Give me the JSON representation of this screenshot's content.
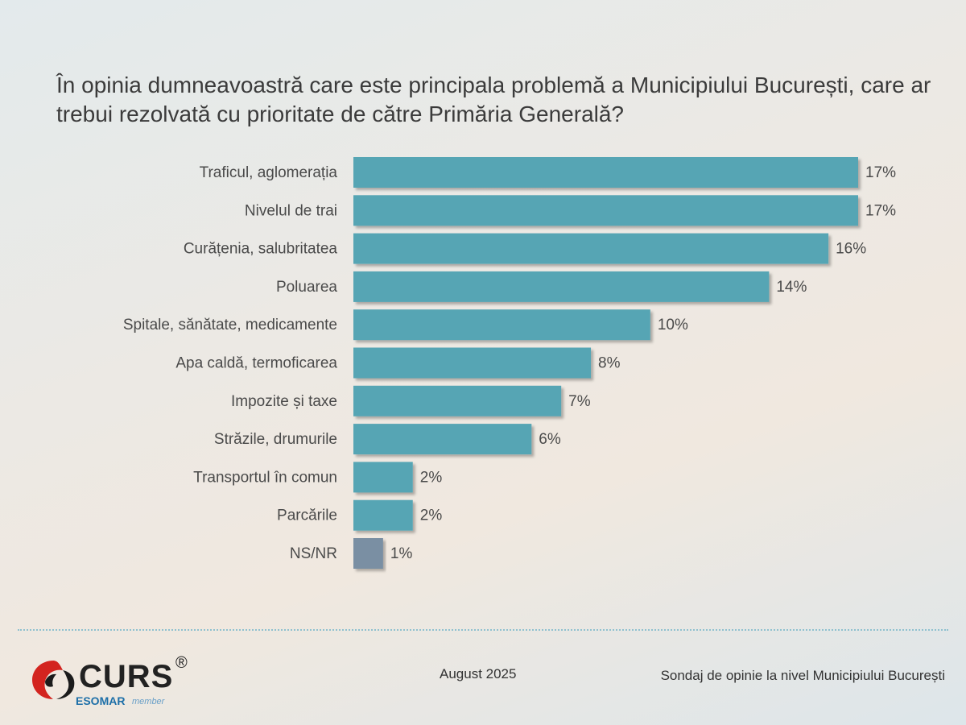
{
  "chart_data": {
    "type": "bar",
    "orientation": "horizontal",
    "title": "În opinia dumneavoastră care este principala problemă a Municipiului București, care ar trebui rezolvată cu prioritate de către Primăria Generală?",
    "categories": [
      "Traficul, aglomerația",
      "Nivelul de trai",
      "Curățenia, salubritatea",
      "Poluarea",
      "Spitale, sănătate, medicamente",
      "Apa caldă, termoficarea",
      "Impozite și taxe",
      "Străzile, drumurile",
      "Transportul în comun",
      "Parcările",
      "NS/NR"
    ],
    "values": [
      17,
      17,
      16,
      14,
      10,
      8,
      7,
      6,
      2,
      2,
      1
    ],
    "value_labels": [
      "17%",
      "17%",
      "16%",
      "14%",
      "10%",
      "8%",
      "7%",
      "6%",
      "2%",
      "2%",
      "1%"
    ],
    "xlim": [
      0,
      17
    ],
    "bar_colors": [
      "#56a5b4",
      "#56a5b4",
      "#56a5b4",
      "#56a5b4",
      "#56a5b4",
      "#56a5b4",
      "#56a5b4",
      "#56a5b4",
      "#56a5b4",
      "#56a5b4",
      "#7a8fa3"
    ],
    "grid": false,
    "legend": "none"
  },
  "footer": {
    "logo": "CURS",
    "logo_sub": "ESOMAR",
    "logo_member": "member",
    "date": "August 2025",
    "source": "Sondaj de opinie la nivel Municipiului București"
  },
  "icons": {
    "logo_mark": "curs-swirl-icon",
    "registered": "registered-mark"
  }
}
